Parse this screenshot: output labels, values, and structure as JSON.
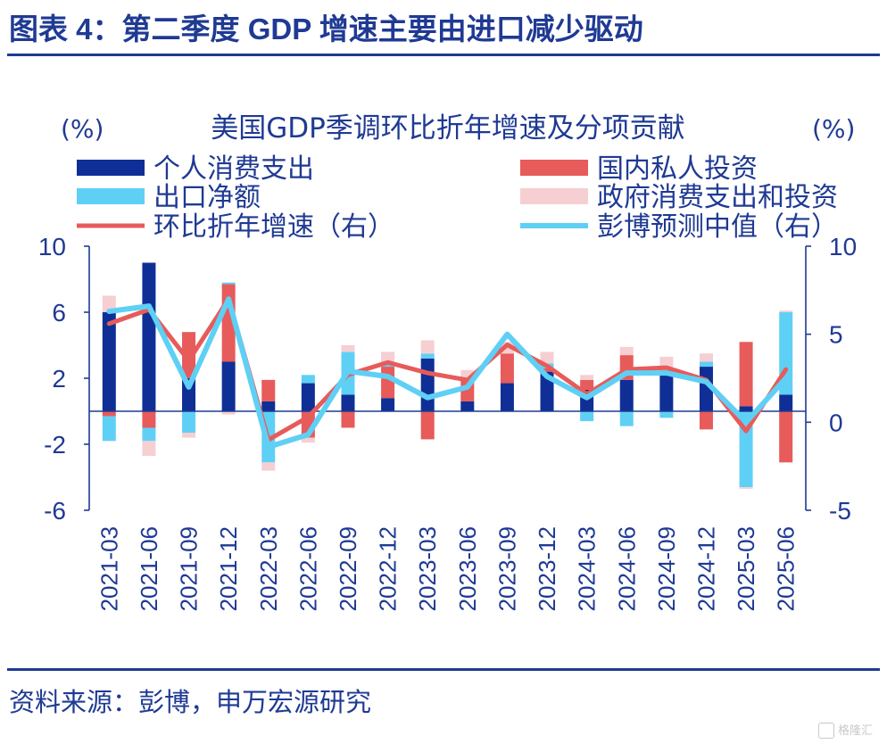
{
  "figure": {
    "title": "图表 4：第二季度 GDP 增速主要由进口减少驱动",
    "source": "资料来源：彭博，申万宏源研究",
    "watermark": "格隆汇"
  },
  "colors": {
    "consumption": "#0f2f96",
    "private_investment": "#e75b5b",
    "net_exports": "#5fd0f5",
    "government": "#f6cfd2",
    "growth_line": "#e75b5b",
    "consensus_line": "#5fd0f5",
    "axis": "#1f3a93",
    "text": "#1f3a93"
  },
  "chart_data": {
    "type": "bar",
    "title": "美国GDP季调环比折年增速及分项贡献",
    "left_unit": "(%)",
    "right_unit": "(%)",
    "categories": [
      "2021-03",
      "2021-06",
      "2021-09",
      "2021-12",
      "2022-03",
      "2022-06",
      "2022-09",
      "2022-12",
      "2023-03",
      "2023-06",
      "2023-09",
      "2023-12",
      "2024-03",
      "2024-06",
      "2024-09",
      "2024-12",
      "2025-03",
      "2025-06"
    ],
    "left_axis": {
      "ylim": [
        -6,
        10
      ],
      "ticks": [
        10,
        6,
        2,
        -2,
        -6
      ],
      "tick_labels": [
        "10",
        "6",
        "2",
        "-2",
        "-6"
      ]
    },
    "right_axis": {
      "ylim": [
        -5,
        10
      ],
      "ticks": [
        10,
        5,
        0,
        -5
      ],
      "tick_labels": [
        "10",
        "5",
        "0",
        "-5"
      ]
    },
    "stacked_series": [
      {
        "key": "consumption",
        "name": "个人消费支出",
        "axis": "left",
        "values": [
          6.0,
          9.0,
          2.0,
          3.0,
          0.6,
          1.7,
          1.0,
          0.8,
          3.2,
          0.6,
          1.7,
          2.4,
          1.3,
          1.9,
          2.4,
          2.7,
          0.3,
          1.0
        ]
      },
      {
        "key": "private_investment",
        "name": "国内私人投资",
        "axis": "left",
        "values": [
          -0.3,
          -1.0,
          2.8,
          4.7,
          1.3,
          -1.6,
          -1.0,
          1.9,
          -1.7,
          1.4,
          1.8,
          0.2,
          0.6,
          1.5,
          0.1,
          -1.1,
          3.9,
          -3.1
        ]
      },
      {
        "key": "net_exports",
        "name": "出口净额",
        "axis": "left",
        "values": [
          -1.5,
          -0.8,
          -1.3,
          0.1,
          -3.1,
          0.5,
          2.6,
          0.3,
          0.3,
          0.0,
          0.0,
          0.3,
          -0.6,
          -0.9,
          -0.4,
          0.3,
          -4.6,
          5.0
        ]
      },
      {
        "key": "government",
        "name": "政府消费支出和投资",
        "axis": "left",
        "values": [
          1.0,
          -0.9,
          -0.3,
          -0.2,
          -0.5,
          -0.3,
          0.4,
          0.6,
          0.8,
          0.5,
          0.7,
          0.7,
          0.3,
          0.5,
          0.8,
          0.5,
          -0.1,
          0.1
        ]
      }
    ],
    "line_series": [
      {
        "key": "growth_line",
        "name": "环比折年增速（右）",
        "axis": "right",
        "values": [
          5.6,
          6.4,
          3.5,
          7.0,
          -1.0,
          0.3,
          2.7,
          3.4,
          2.8,
          2.4,
          4.4,
          3.2,
          1.6,
          3.0,
          3.1,
          2.4,
          -0.5,
          3.0
        ]
      },
      {
        "key": "consensus_line",
        "name": "彭博预测中值（右）",
        "axis": "right",
        "values": [
          6.3,
          6.6,
          2.0,
          7.0,
          -1.4,
          -0.7,
          2.9,
          2.6,
          1.4,
          2.0,
          5.0,
          2.6,
          1.4,
          2.8,
          2.8,
          2.3,
          0.0,
          2.5
        ]
      }
    ],
    "legend": {
      "placement": "top",
      "entries": [
        {
          "key": "consumption",
          "label": "个人消费支出",
          "kind": "bar"
        },
        {
          "key": "private_investment",
          "label": "国内私人投资",
          "kind": "bar"
        },
        {
          "key": "net_exports",
          "label": "出口净额",
          "kind": "bar"
        },
        {
          "key": "government",
          "label": "政府消费支出和投资",
          "kind": "bar"
        },
        {
          "key": "growth_line",
          "label": "环比折年增速（右）",
          "kind": "line"
        },
        {
          "key": "consensus_line",
          "label": "彭博预测中值（右）",
          "kind": "line"
        }
      ]
    },
    "grid": false
  }
}
